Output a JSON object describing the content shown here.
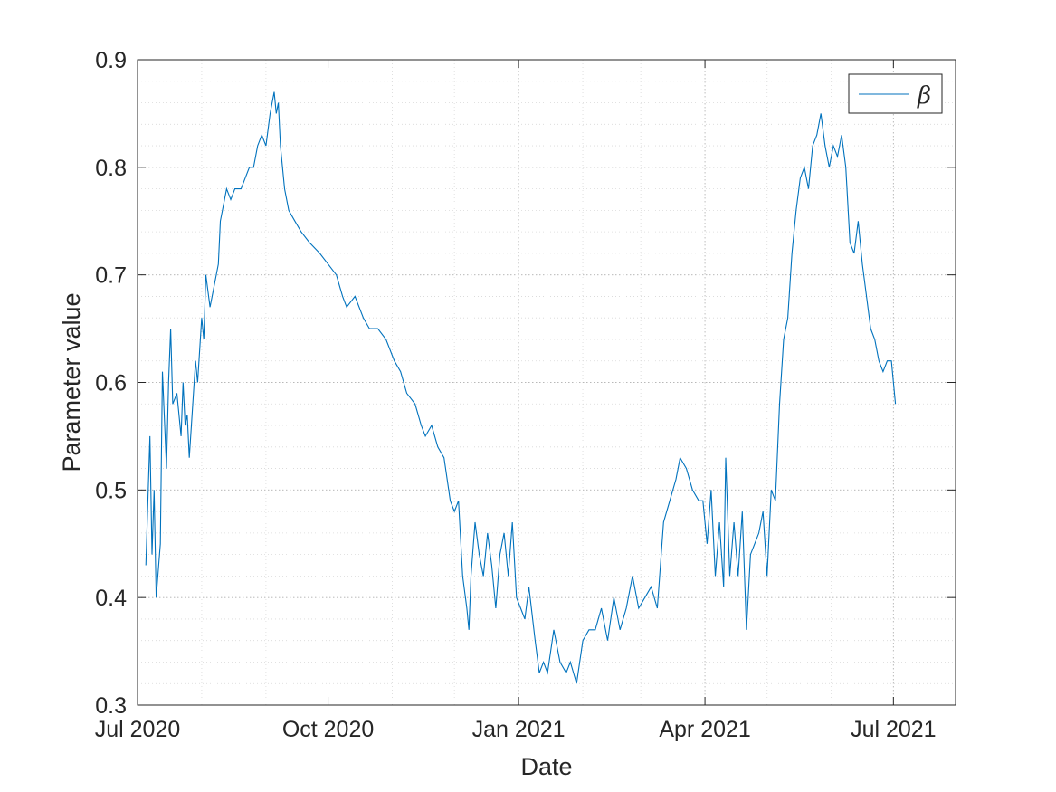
{
  "chart_data": {
    "type": "line",
    "title": "",
    "xlabel": "Date",
    "ylabel": "Parameter value",
    "xlim": [
      "2020-07-01",
      "2021-07-31"
    ],
    "ylim": [
      0.3,
      0.9
    ],
    "y_ticks": [
      0.3,
      0.4,
      0.5,
      0.6,
      0.7,
      0.8,
      0.9
    ],
    "y_tick_labels": [
      "0.3",
      "0.4",
      "0.5",
      "0.6",
      "0.7",
      "0.8",
      "0.9"
    ],
    "x_ticks": [
      "2020-07-01",
      "2020-10-01",
      "2021-01-01",
      "2021-04-01",
      "2021-07-01"
    ],
    "x_tick_labels": [
      "Jul 2020",
      "Oct 2020",
      "Jan 2021",
      "Apr 2021",
      "Jul 2021"
    ],
    "grid": true,
    "minor_grid": true,
    "legend_position": "top-right",
    "series": [
      {
        "name": "β",
        "color": "#0072BD",
        "points": [
          [
            "2020-07-05",
            0.43
          ],
          [
            "2020-07-07",
            0.55
          ],
          [
            "2020-07-08",
            0.44
          ],
          [
            "2020-07-09",
            0.5
          ],
          [
            "2020-07-10",
            0.4
          ],
          [
            "2020-07-12",
            0.45
          ],
          [
            "2020-07-13",
            0.61
          ],
          [
            "2020-07-15",
            0.52
          ],
          [
            "2020-07-16",
            0.6
          ],
          [
            "2020-07-17",
            0.65
          ],
          [
            "2020-07-18",
            0.58
          ],
          [
            "2020-07-20",
            0.59
          ],
          [
            "2020-07-22",
            0.55
          ],
          [
            "2020-07-23",
            0.6
          ],
          [
            "2020-07-24",
            0.56
          ],
          [
            "2020-07-25",
            0.57
          ],
          [
            "2020-07-26",
            0.53
          ],
          [
            "2020-07-27",
            0.56
          ],
          [
            "2020-07-29",
            0.62
          ],
          [
            "2020-07-30",
            0.6
          ],
          [
            "2020-08-01",
            0.66
          ],
          [
            "2020-08-02",
            0.64
          ],
          [
            "2020-08-03",
            0.7
          ],
          [
            "2020-08-05",
            0.67
          ],
          [
            "2020-08-07",
            0.69
          ],
          [
            "2020-08-09",
            0.71
          ],
          [
            "2020-08-10",
            0.75
          ],
          [
            "2020-08-13",
            0.78
          ],
          [
            "2020-08-15",
            0.77
          ],
          [
            "2020-08-17",
            0.78
          ],
          [
            "2020-08-20",
            0.78
          ],
          [
            "2020-08-22",
            0.79
          ],
          [
            "2020-08-24",
            0.8
          ],
          [
            "2020-08-26",
            0.8
          ],
          [
            "2020-08-28",
            0.82
          ],
          [
            "2020-08-30",
            0.83
          ],
          [
            "2020-09-01",
            0.82
          ],
          [
            "2020-09-03",
            0.85
          ],
          [
            "2020-09-05",
            0.87
          ],
          [
            "2020-09-06",
            0.85
          ],
          [
            "2020-09-07",
            0.86
          ],
          [
            "2020-09-08",
            0.82
          ],
          [
            "2020-09-10",
            0.78
          ],
          [
            "2020-09-12",
            0.76
          ],
          [
            "2020-09-15",
            0.75
          ],
          [
            "2020-09-18",
            0.74
          ],
          [
            "2020-09-22",
            0.73
          ],
          [
            "2020-09-27",
            0.72
          ],
          [
            "2020-10-01",
            0.71
          ],
          [
            "2020-10-05",
            0.7
          ],
          [
            "2020-10-08",
            0.68
          ],
          [
            "2020-10-10",
            0.67
          ],
          [
            "2020-10-14",
            0.68
          ],
          [
            "2020-10-18",
            0.66
          ],
          [
            "2020-10-21",
            0.65
          ],
          [
            "2020-10-25",
            0.65
          ],
          [
            "2020-10-29",
            0.64
          ],
          [
            "2020-11-02",
            0.62
          ],
          [
            "2020-11-05",
            0.61
          ],
          [
            "2020-11-08",
            0.59
          ],
          [
            "2020-11-12",
            0.58
          ],
          [
            "2020-11-15",
            0.56
          ],
          [
            "2020-11-17",
            0.55
          ],
          [
            "2020-11-20",
            0.56
          ],
          [
            "2020-11-23",
            0.54
          ],
          [
            "2020-11-26",
            0.53
          ],
          [
            "2020-11-29",
            0.49
          ],
          [
            "2020-12-01",
            0.48
          ],
          [
            "2020-12-03",
            0.49
          ],
          [
            "2020-12-05",
            0.42
          ],
          [
            "2020-12-07",
            0.39
          ],
          [
            "2020-12-08",
            0.37
          ],
          [
            "2020-12-09",
            0.42
          ],
          [
            "2020-12-11",
            0.47
          ],
          [
            "2020-12-13",
            0.44
          ],
          [
            "2020-12-15",
            0.42
          ],
          [
            "2020-12-17",
            0.46
          ],
          [
            "2020-12-19",
            0.43
          ],
          [
            "2020-12-21",
            0.39
          ],
          [
            "2020-12-23",
            0.44
          ],
          [
            "2020-12-25",
            0.46
          ],
          [
            "2020-12-27",
            0.42
          ],
          [
            "2020-12-29",
            0.47
          ],
          [
            "2020-12-31",
            0.4
          ],
          [
            "2021-01-02",
            0.39
          ],
          [
            "2021-01-04",
            0.38
          ],
          [
            "2021-01-06",
            0.41
          ],
          [
            "2021-01-09",
            0.36
          ],
          [
            "2021-01-11",
            0.33
          ],
          [
            "2021-01-13",
            0.34
          ],
          [
            "2021-01-15",
            0.33
          ],
          [
            "2021-01-18",
            0.37
          ],
          [
            "2021-01-21",
            0.34
          ],
          [
            "2021-01-24",
            0.33
          ],
          [
            "2021-01-26",
            0.34
          ],
          [
            "2021-01-29",
            0.32
          ],
          [
            "2021-02-01",
            0.36
          ],
          [
            "2021-02-04",
            0.37
          ],
          [
            "2021-02-07",
            0.37
          ],
          [
            "2021-02-10",
            0.39
          ],
          [
            "2021-02-13",
            0.36
          ],
          [
            "2021-02-16",
            0.4
          ],
          [
            "2021-02-19",
            0.37
          ],
          [
            "2021-02-22",
            0.39
          ],
          [
            "2021-02-25",
            0.42
          ],
          [
            "2021-02-28",
            0.39
          ],
          [
            "2021-03-03",
            0.4
          ],
          [
            "2021-03-06",
            0.41
          ],
          [
            "2021-03-09",
            0.39
          ],
          [
            "2021-03-12",
            0.47
          ],
          [
            "2021-03-15",
            0.49
          ],
          [
            "2021-03-18",
            0.51
          ],
          [
            "2021-03-20",
            0.53
          ],
          [
            "2021-03-23",
            0.52
          ],
          [
            "2021-03-26",
            0.5
          ],
          [
            "2021-03-29",
            0.49
          ],
          [
            "2021-03-31",
            0.49
          ],
          [
            "2021-04-02",
            0.45
          ],
          [
            "2021-04-04",
            0.5
          ],
          [
            "2021-04-06",
            0.42
          ],
          [
            "2021-04-08",
            0.47
          ],
          [
            "2021-04-10",
            0.41
          ],
          [
            "2021-04-11",
            0.53
          ],
          [
            "2021-04-13",
            0.42
          ],
          [
            "2021-04-15",
            0.47
          ],
          [
            "2021-04-17",
            0.42
          ],
          [
            "2021-04-19",
            0.48
          ],
          [
            "2021-04-21",
            0.37
          ],
          [
            "2021-04-23",
            0.44
          ],
          [
            "2021-04-25",
            0.45
          ],
          [
            "2021-04-27",
            0.46
          ],
          [
            "2021-04-29",
            0.48
          ],
          [
            "2021-05-01",
            0.42
          ],
          [
            "2021-05-03",
            0.5
          ],
          [
            "2021-05-05",
            0.49
          ],
          [
            "2021-05-07",
            0.58
          ],
          [
            "2021-05-09",
            0.64
          ],
          [
            "2021-05-11",
            0.66
          ],
          [
            "2021-05-13",
            0.72
          ],
          [
            "2021-05-15",
            0.76
          ],
          [
            "2021-05-17",
            0.79
          ],
          [
            "2021-05-19",
            0.8
          ],
          [
            "2021-05-21",
            0.78
          ],
          [
            "2021-05-23",
            0.82
          ],
          [
            "2021-05-25",
            0.83
          ],
          [
            "2021-05-27",
            0.85
          ],
          [
            "2021-05-29",
            0.82
          ],
          [
            "2021-05-31",
            0.8
          ],
          [
            "2021-06-02",
            0.82
          ],
          [
            "2021-06-04",
            0.81
          ],
          [
            "2021-06-06",
            0.83
          ],
          [
            "2021-06-08",
            0.8
          ],
          [
            "2021-06-10",
            0.73
          ],
          [
            "2021-06-12",
            0.72
          ],
          [
            "2021-06-14",
            0.75
          ],
          [
            "2021-06-16",
            0.71
          ],
          [
            "2021-06-18",
            0.68
          ],
          [
            "2021-06-20",
            0.65
          ],
          [
            "2021-06-22",
            0.64
          ],
          [
            "2021-06-24",
            0.62
          ],
          [
            "2021-06-26",
            0.61
          ],
          [
            "2021-06-28",
            0.62
          ],
          [
            "2021-06-30",
            0.62
          ],
          [
            "2021-07-02",
            0.58
          ]
        ]
      }
    ]
  }
}
